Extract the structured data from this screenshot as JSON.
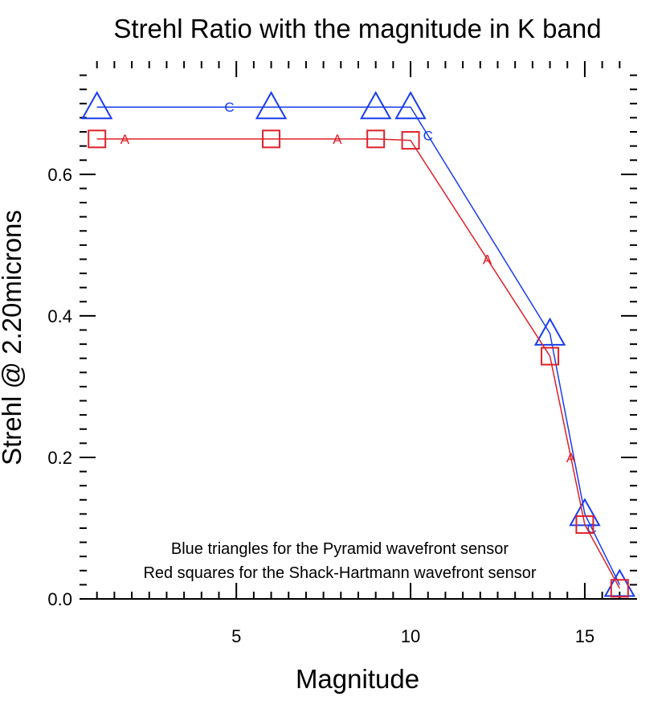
{
  "chart_data": {
    "type": "line",
    "title": "Strehl Ratio with the magnitude in K band",
    "xlabel": "Magnitude",
    "ylabel": "Strehl @ 2.20microns",
    "xlim": [
      0.5,
      16.5
    ],
    "ylim": [
      0.0,
      0.76
    ],
    "xticks": [
      {
        "value": 5,
        "label": "5"
      },
      {
        "value": 10,
        "label": "10"
      },
      {
        "value": 15,
        "label": "15"
      }
    ],
    "yticks": [
      {
        "value": 0.0,
        "label": "0.0"
      },
      {
        "value": 0.2,
        "label": "0.2"
      },
      {
        "value": 0.4,
        "label": "0.4"
      },
      {
        "value": 0.6,
        "label": "0.6"
      }
    ],
    "grid": false,
    "series": [
      {
        "marker": "triangle",
        "color": "#1a3cf0",
        "curve_letter": "C",
        "letter_positions": [
          4.8,
          10.5,
          15.2
        ],
        "x": [
          1,
          6,
          9,
          10,
          14,
          15,
          16
        ],
        "y": [
          0.695,
          0.695,
          0.695,
          0.695,
          0.375,
          0.12,
          0.02
        ]
      },
      {
        "marker": "square",
        "color": "#e0202a",
        "curve_letter": "A",
        "letter_positions": [
          1.8,
          7.9,
          12.2,
          14.6
        ],
        "x": [
          1,
          6,
          9,
          10,
          14,
          15,
          16
        ],
        "y": [
          0.65,
          0.65,
          0.65,
          0.648,
          0.343,
          0.105,
          0.015
        ]
      }
    ],
    "annotations": [
      "Blue triangles for the Pyramid wavefront sensor",
      "Red squares for the Shack-Hartmann wavefront sensor"
    ]
  }
}
